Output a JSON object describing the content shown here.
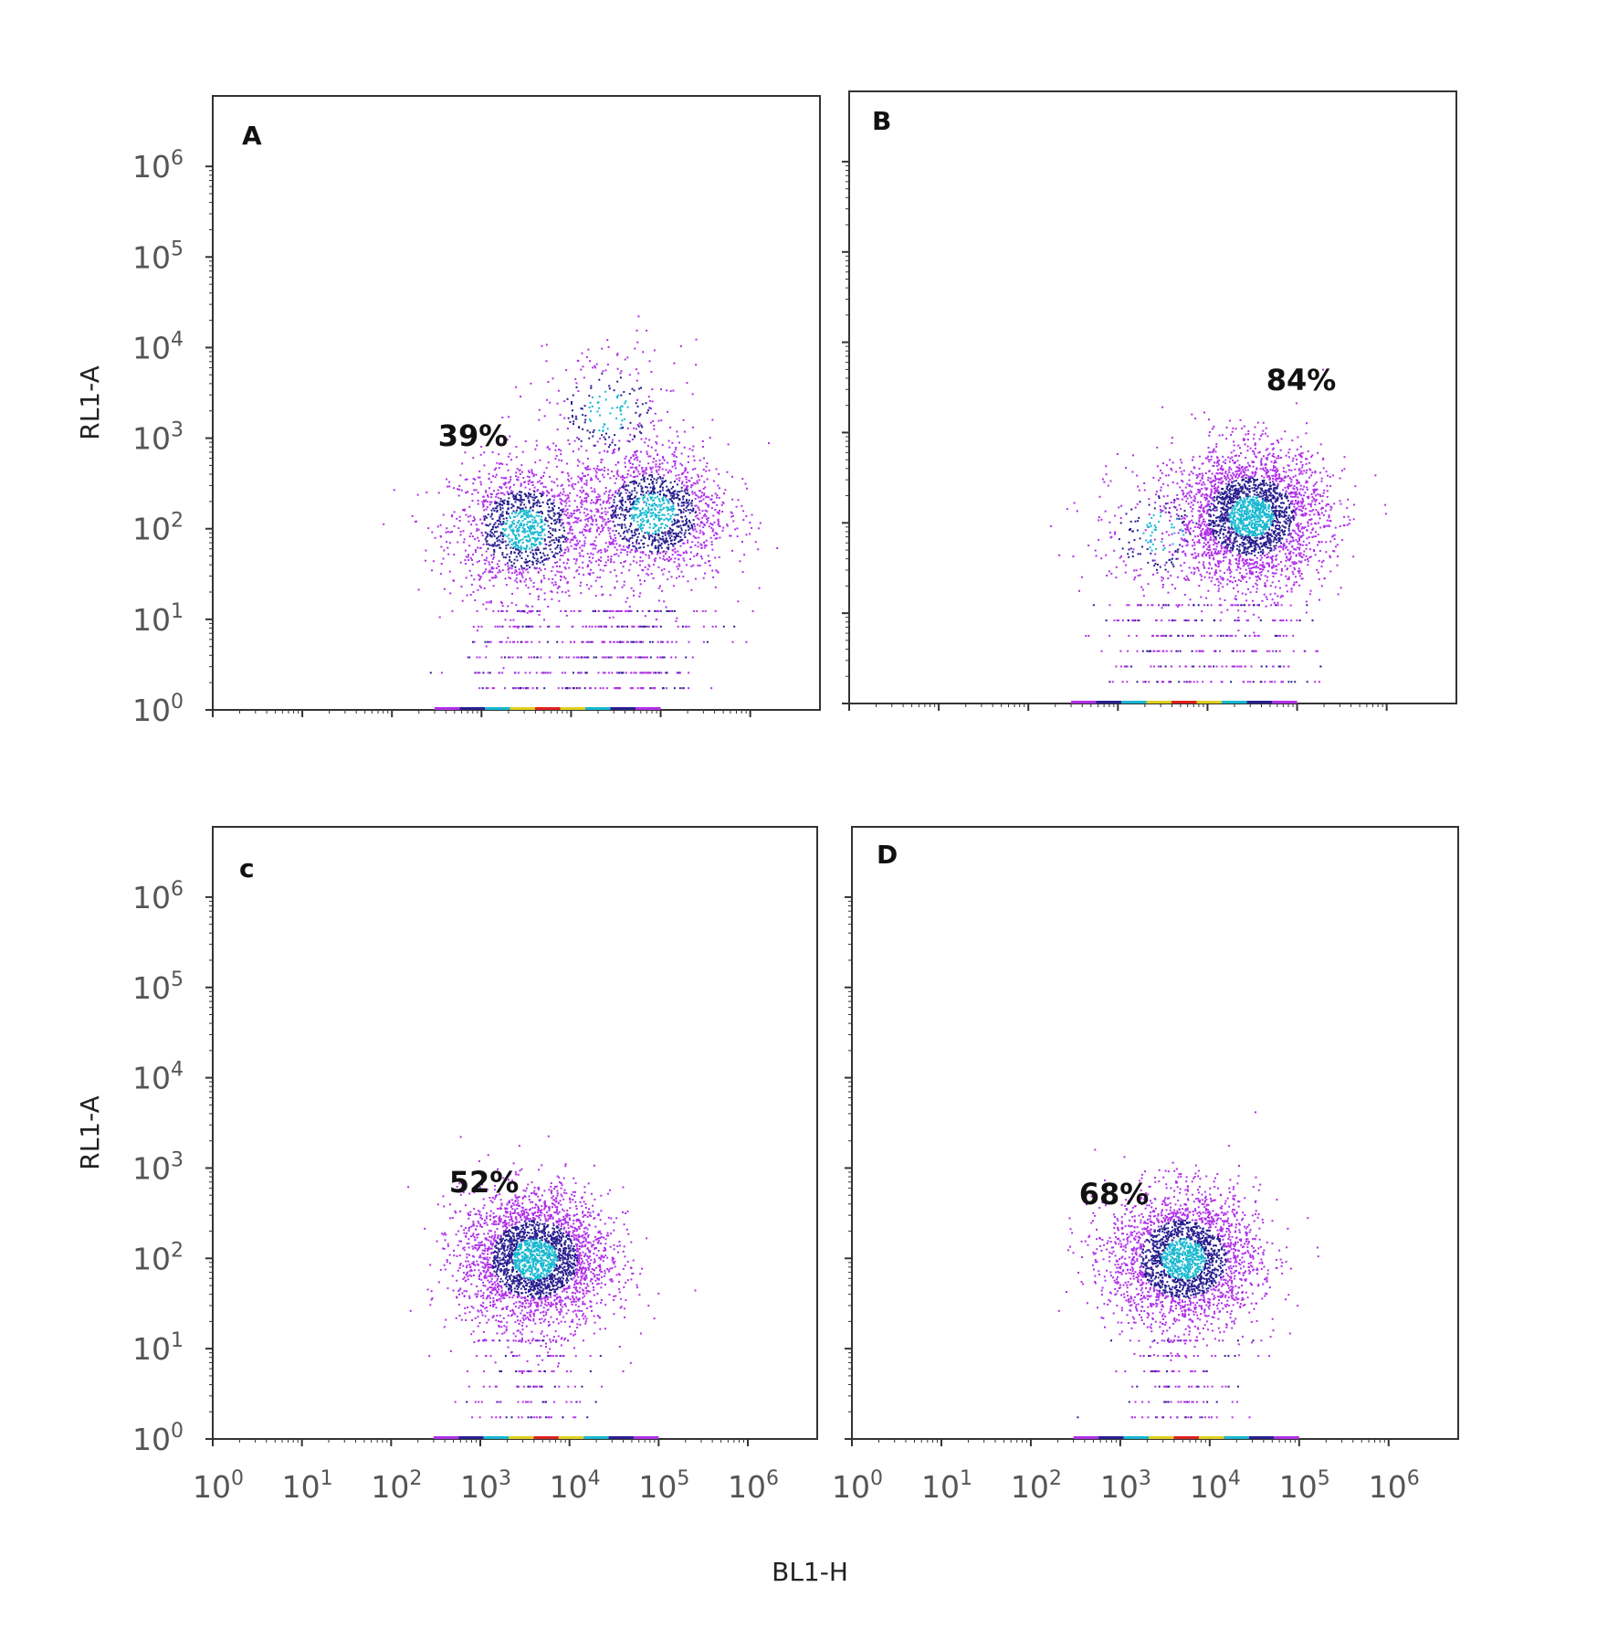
{
  "chart_data": [
    {
      "type": "scatter",
      "panel": "A",
      "x_scale": "log",
      "y_scale": "log",
      "xlim": [
        1,
        6000000
      ],
      "ylim": [
        1,
        6000000
      ],
      "ylabel": "RL1-A",
      "gate_percent": "39%",
      "populations": [
        {
          "x_center": 3000,
          "y_center": 100,
          "count": 1400
        },
        {
          "x_center": 80000,
          "y_center": 150,
          "count": 1500
        },
        {
          "x_center": 25000,
          "y_center": 2000,
          "count": 250
        }
      ]
    },
    {
      "type": "scatter",
      "panel": "B",
      "x_scale": "log",
      "y_scale": "log",
      "xlim": [
        1,
        6000000
      ],
      "ylim": [
        1,
        6000000
      ],
      "gate_percent": "84%",
      "populations": [
        {
          "x_center": 30000,
          "y_center": 120,
          "count": 2800
        },
        {
          "x_center": 3000,
          "y_center": 80,
          "count": 250
        }
      ]
    },
    {
      "type": "scatter",
      "panel": "c",
      "x_scale": "log",
      "y_scale": "log",
      "xlim": [
        1,
        6000000
      ],
      "ylim": [
        1,
        6000000
      ],
      "ylabel": "RL1-A",
      "gate_percent": "52%",
      "populations": [
        {
          "x_center": 4000,
          "y_center": 100,
          "count": 3000
        }
      ]
    },
    {
      "type": "scatter",
      "panel": "D",
      "x_scale": "log",
      "y_scale": "log",
      "xlim": [
        1,
        6000000
      ],
      "ylim": [
        1,
        6000000
      ],
      "gate_percent": "68%",
      "populations": [
        {
          "x_center": 5000,
          "y_center": 100,
          "count": 2600
        }
      ]
    }
  ],
  "shared": {
    "xlabel": "BL1-H",
    "tick_base": "10",
    "y_tick_exponents": [
      "0",
      "1",
      "2",
      "3",
      "4",
      "5",
      "6"
    ],
    "x_tick_exponents": [
      "0",
      "1",
      "2",
      "3",
      "4",
      "5",
      "6"
    ]
  },
  "colors": {
    "low": "#b030e8",
    "mid": "#2a1f8f",
    "high": "#18b8d0",
    "axis": "#333333"
  }
}
